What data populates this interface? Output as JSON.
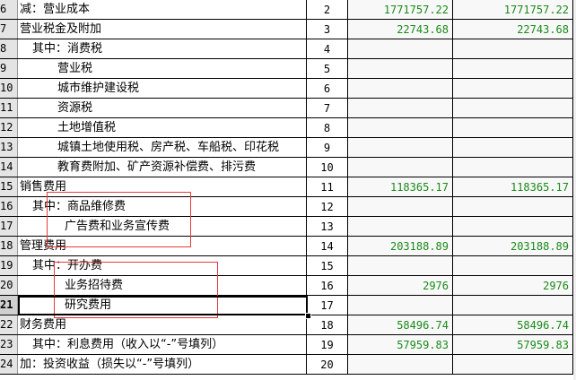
{
  "rows": [
    {
      "num": "6",
      "label": "减：营业成本",
      "indent": 0,
      "line": "2",
      "c": "1771757.22",
      "d": "1771757.22"
    },
    {
      "num": "7",
      "label": "营业税金及附加",
      "indent": 0,
      "line": "3",
      "c": "22743.68",
      "d": "22743.68"
    },
    {
      "num": "8",
      "label": "其中：消费税",
      "indent": 1,
      "line": "4",
      "c": "",
      "d": ""
    },
    {
      "num": "9",
      "label": "营业税",
      "indent": 2,
      "line": "5",
      "c": "",
      "d": ""
    },
    {
      "num": "10",
      "label": "城市维护建设税",
      "indent": 2,
      "line": "6",
      "c": "",
      "d": ""
    },
    {
      "num": "11",
      "label": "资源税",
      "indent": 2,
      "line": "7",
      "c": "",
      "d": ""
    },
    {
      "num": "12",
      "label": "土地增值税",
      "indent": 2,
      "line": "8",
      "c": "",
      "d": ""
    },
    {
      "num": "13",
      "label": "城镇土地使用税、房产税、车船税、印花税",
      "indent": 2,
      "line": "9",
      "c": "",
      "d": ""
    },
    {
      "num": "14",
      "label": "教育费附加、矿产资源补偿费、排污费",
      "indent": 2,
      "line": "10",
      "c": "",
      "d": ""
    },
    {
      "num": "15",
      "label": "销售费用",
      "indent": 0,
      "line": "11",
      "c": "118365.17",
      "d": "118365.17"
    },
    {
      "num": "16",
      "label": "其中：商品维修费",
      "indent": 1,
      "line": "12",
      "c": "",
      "d": ""
    },
    {
      "num": "17",
      "label": "广告费和业务宣传费",
      "indent": 3,
      "line": "13",
      "c": "",
      "d": ""
    },
    {
      "num": "18",
      "label": "管理费用",
      "indent": 0,
      "line": "14",
      "c": "203188.89",
      "d": "203188.89"
    },
    {
      "num": "19",
      "label": "其中：开办费",
      "indent": 1,
      "line": "15",
      "c": "",
      "d": ""
    },
    {
      "num": "20",
      "label": "业务招待费",
      "indent": 3,
      "line": "16",
      "c": "2976",
      "d": "2976"
    },
    {
      "num": "21",
      "label": "研究费用",
      "indent": 3,
      "line": "17",
      "c": "",
      "d": "",
      "selected": true
    },
    {
      "num": "22",
      "label": "财务费用",
      "indent": 0,
      "line": "18",
      "c": "58496.74",
      "d": "58496.74"
    },
    {
      "num": "23",
      "label": "其中：利息费用（收入以“-”号填列）",
      "indent": 1,
      "line": "19",
      "c": "57959.83",
      "d": "57959.83"
    },
    {
      "num": "24",
      "label": "加：投资收益（损失以“-”号填列）",
      "indent": 0,
      "line": "20",
      "c": "",
      "d": ""
    }
  ],
  "colors": {
    "value_text": "#1a8a1a",
    "annotation_box": "#e83a3a"
  }
}
